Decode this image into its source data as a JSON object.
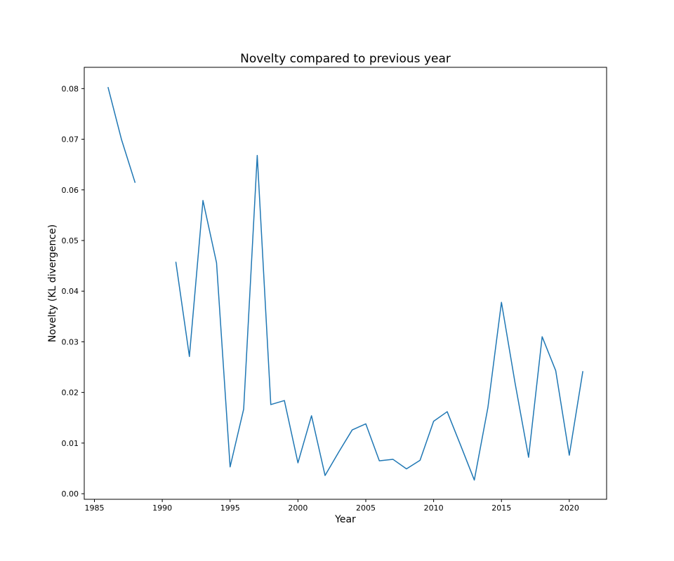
{
  "chart_data": {
    "type": "line",
    "title": "Novelty compared to previous year",
    "xlabel": "Year",
    "ylabel": "Novelty (KL divergence)",
    "xlim": [
      1984.25,
      2022.75
    ],
    "ylim": [
      -0.0011,
      0.0842
    ],
    "xticks": [
      1985,
      1990,
      1995,
      2000,
      2005,
      2010,
      2015,
      2020
    ],
    "yticks": [
      0.0,
      0.01,
      0.02,
      0.03,
      0.04,
      0.05,
      0.06,
      0.07,
      0.08
    ],
    "ytick_labels": [
      "0.00",
      "0.01",
      "0.02",
      "0.03",
      "0.04",
      "0.05",
      "0.06",
      "0.07",
      "0.08"
    ],
    "grid": false,
    "series": [
      {
        "color": "#1f77b4",
        "x": [
          1986,
          1987,
          1988,
          1989,
          1990,
          1991,
          1992,
          1993,
          1994,
          1995,
          1996,
          1997,
          1998,
          1999,
          2000,
          2001,
          2002,
          2003,
          2004,
          2005,
          2006,
          2007,
          2008,
          2009,
          2010,
          2011,
          2012,
          2013,
          2014,
          2015,
          2016,
          2017,
          2018,
          2019,
          2020,
          2021
        ],
        "y": [
          0.0803,
          0.0699,
          0.0614,
          null,
          null,
          0.0458,
          0.0271,
          0.0579,
          0.0456,
          0.0053,
          0.0167,
          0.0668,
          0.0176,
          0.0184,
          0.0061,
          0.0154,
          0.0036,
          0.0082,
          0.0126,
          0.0138,
          0.0065,
          0.0068,
          0.0049,
          0.0066,
          0.0143,
          0.0162,
          0.0095,
          0.0027,
          0.017,
          0.0378,
          0.0219,
          0.0072,
          0.031,
          0.0243,
          0.0076,
          0.0242
        ]
      }
    ]
  }
}
